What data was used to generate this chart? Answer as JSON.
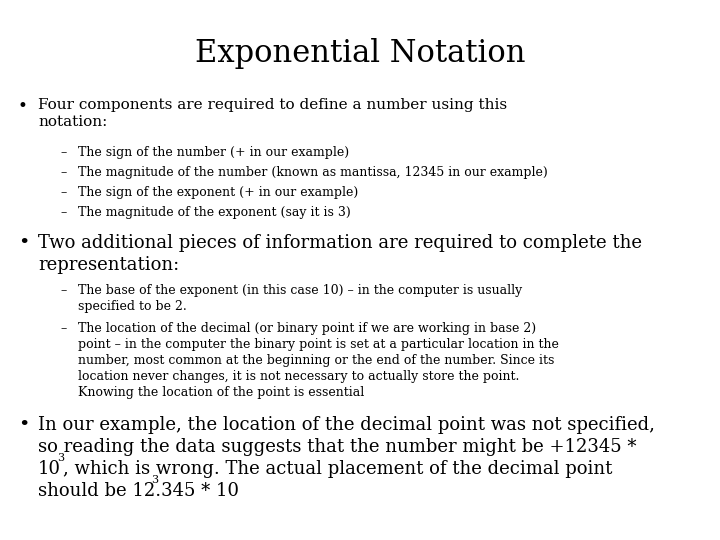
{
  "title": "Exponential Notation",
  "background_color": "#ffffff",
  "text_color": "#000000",
  "title_fontsize": 22,
  "fs_bullet": 11,
  "fs_sub": 9,
  "bullet1": "Four components are required to define a number using this\nnotation:",
  "sub1": [
    "The sign of the number (+ in our example)",
    "The magnitude of the number (known as mantissa, 12345 in our example)",
    "The sign of the exponent (+ in our example)",
    "The magnitude of the exponent (say it is 3)"
  ],
  "bullet2": "Two additional pieces of information are required to complete the\nrepresentation:",
  "sub2a": "The base of the exponent (in this case 10) – in the computer is usually\nspecified to be 2.",
  "sub2b": "The location of the decimal (or binary point if we are working in base 2)\npoint – in the computer the binary point is set at a particular location in the\nnumber, most common at the beginning or the end of the number. Since its\nlocation never changes, it is not necessary to actually store the point.\nKnowing the location of the point is essential",
  "bullet3_line1": "In our example, the location of the decimal point was not specified,",
  "bullet3_line2": "so reading the data suggests that the number might be +12345 *",
  "bullet3_line3a": "10",
  "bullet3_line3b": "3",
  "bullet3_line3c": ", which is wrong. The actual placement of the decimal point",
  "bullet3_line4a": "should be 12.345 * 10",
  "bullet3_line4b": "3"
}
